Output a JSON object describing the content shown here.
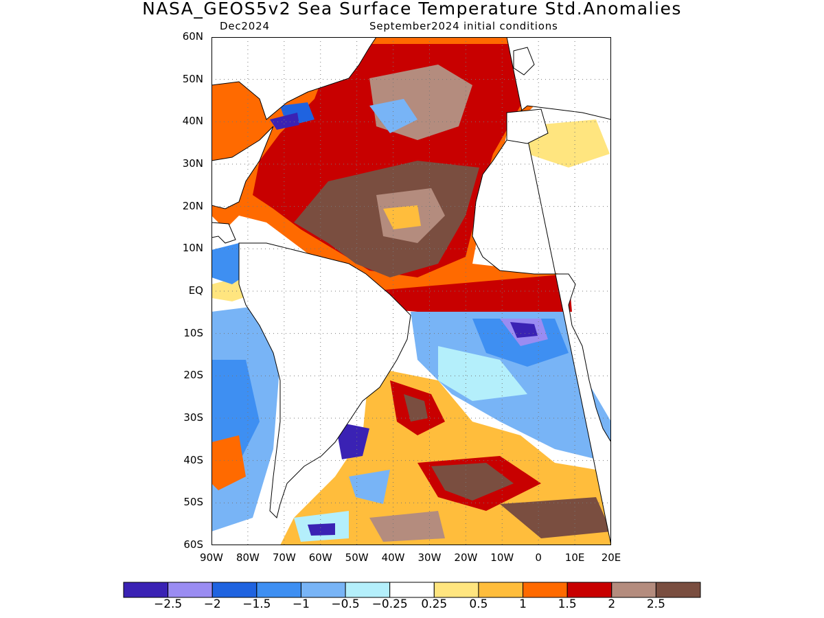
{
  "title": "NASA_GEOS5v2 Sea Surface Temperature Std.Anomalies",
  "subtitle_left": "Dec2024",
  "subtitle_right": "September2024 initial conditions",
  "axes": {
    "lat_ticks": [
      "60N",
      "50N",
      "40N",
      "30N",
      "20N",
      "10N",
      "EQ",
      "10S",
      "20S",
      "30S",
      "40S",
      "50S",
      "60S"
    ],
    "lon_ticks": [
      "90W",
      "80W",
      "70W",
      "60W",
      "50W",
      "40W",
      "30W",
      "20W",
      "10W",
      "0",
      "10E",
      "20E"
    ],
    "lat_range": [
      -60,
      60
    ],
    "lon_range": [
      -90,
      20
    ],
    "grid": "dotted"
  },
  "colorbar": {
    "colors": [
      "#3a22b4",
      "#9a8cf2",
      "#1f63e0",
      "#3e8ff2",
      "#78b4f6",
      "#b4effb",
      "#ffffff",
      "#ffe57f",
      "#ffbd3c",
      "#ff6a00",
      "#c80000",
      "#b48c7e",
      "#7a4e40"
    ],
    "labels": [
      "-2.5",
      "-2",
      "-1.5",
      "-1",
      "-0.5",
      "-0.25",
      "0.25",
      "0.5",
      "1",
      "1.5",
      "2",
      "2.5"
    ]
  },
  "colors": {
    "land": "#ffffff",
    "coastline": "#000000"
  }
}
